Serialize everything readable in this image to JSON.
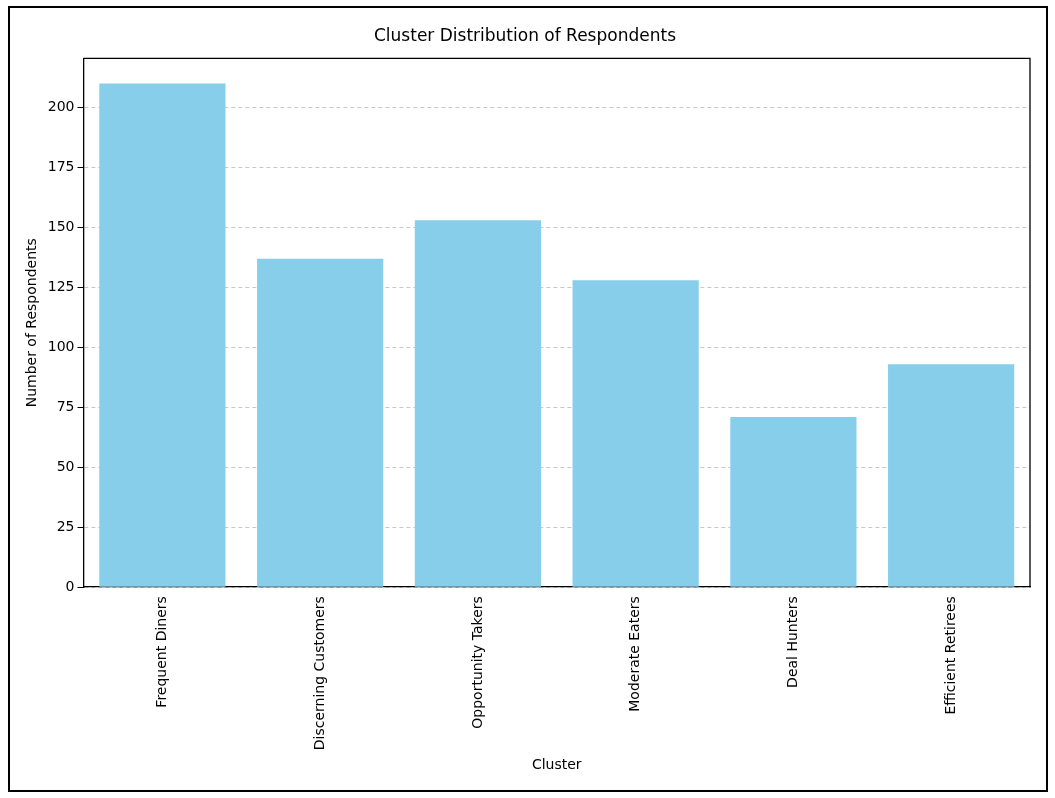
{
  "chart_data": {
    "type": "bar",
    "title": "Cluster Distribution of Respondents",
    "xlabel": "Cluster",
    "ylabel": "Number of Respondents",
    "categories": [
      "Frequent Diners",
      "Discerning Customers",
      "Opportunity Takers",
      "Moderate Eaters",
      "Deal Hunters",
      "Efficient Retirees"
    ],
    "values": [
      210,
      137,
      153,
      128,
      71,
      93
    ],
    "color": "#87ceeb",
    "ylim": [
      0,
      220.5
    ],
    "yticks": [
      0,
      25,
      50,
      75,
      100,
      125,
      150,
      175,
      200
    ],
    "grid": "y",
    "legend": false
  }
}
